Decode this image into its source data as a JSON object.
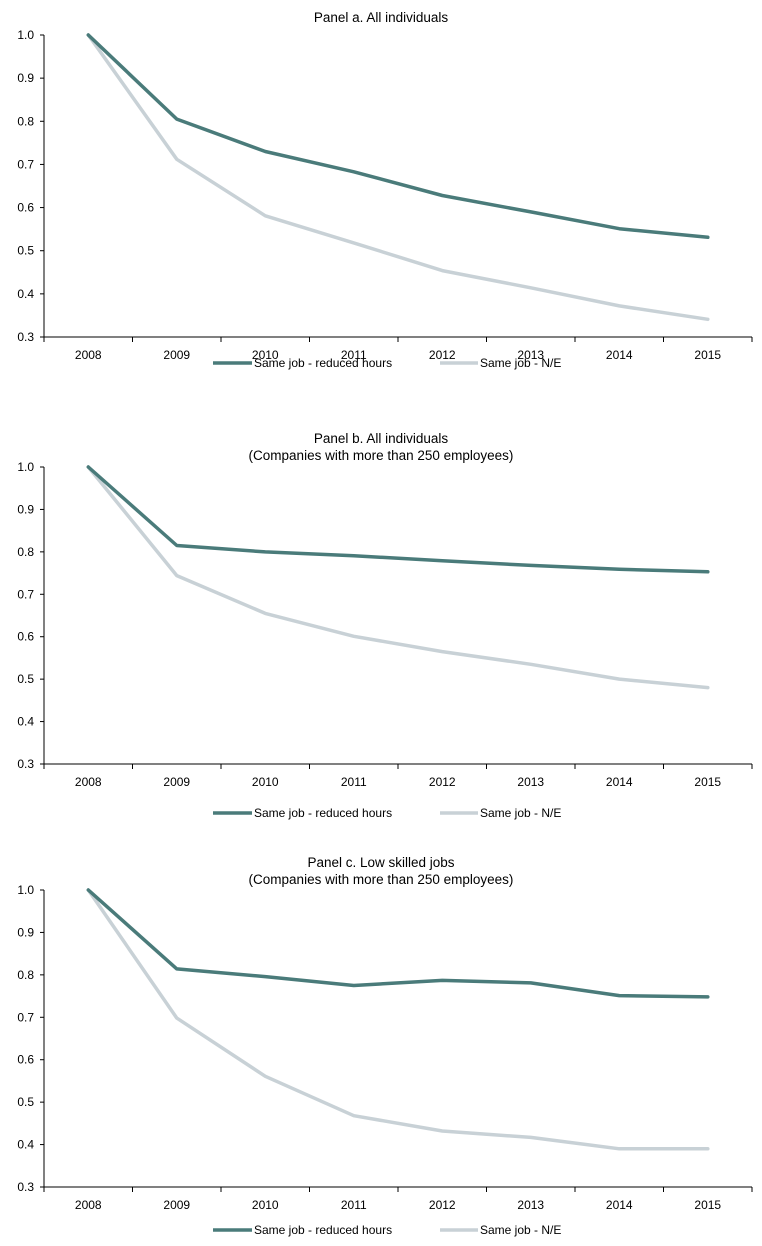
{
  "chart_data": [
    {
      "type": "line",
      "title": "Panel a. All individuals",
      "subtitle": "",
      "xlabel": "",
      "ylabel": "",
      "categories": [
        "2008",
        "2009",
        "2010",
        "2011",
        "2012",
        "2013",
        "2014",
        "2015"
      ],
      "ylim": [
        0.3,
        1.0
      ],
      "yticks": [
        "0.3",
        "0.4",
        "0.5",
        "0.6",
        "0.7",
        "0.8",
        "0.9",
        "1.0"
      ],
      "grid": false,
      "legend_position": "bottom",
      "series": [
        {
          "name": "Same job - reduced hours",
          "color": "#4a7b7a",
          "values": [
            1.0,
            0.805,
            0.73,
            0.683,
            0.628,
            0.59,
            0.551,
            0.531
          ]
        },
        {
          "name": "Same job - N/E",
          "color": "#c8d1d6",
          "values": [
            1.0,
            0.712,
            0.581,
            0.518,
            0.454,
            0.414,
            0.372,
            0.341
          ]
        }
      ]
    },
    {
      "type": "line",
      "title": "Panel b. All individuals",
      "subtitle": "(Companies with more than 250 employees)",
      "xlabel": "",
      "ylabel": "",
      "categories": [
        "2008",
        "2009",
        "2010",
        "2011",
        "2012",
        "2013",
        "2014",
        "2015"
      ],
      "ylim": [
        0.3,
        1.0
      ],
      "yticks": [
        "0.3",
        "0.4",
        "0.5",
        "0.6",
        "0.7",
        "0.8",
        "0.9",
        "1.0"
      ],
      "grid": false,
      "legend_position": "bottom",
      "series": [
        {
          "name": "Same job - reduced hours",
          "color": "#4a7b7a",
          "values": [
            1.0,
            0.815,
            0.8,
            0.791,
            0.779,
            0.768,
            0.759,
            0.753
          ]
        },
        {
          "name": "Same job - N/E",
          "color": "#c8d1d6",
          "values": [
            1.0,
            0.744,
            0.655,
            0.601,
            0.565,
            0.535,
            0.5,
            0.48
          ]
        }
      ]
    },
    {
      "type": "line",
      "title": "Panel c. Low skilled jobs",
      "subtitle": "(Companies with more than 250 employees)",
      "xlabel": "",
      "ylabel": "",
      "categories": [
        "2008",
        "2009",
        "2010",
        "2011",
        "2012",
        "2013",
        "2014",
        "2015"
      ],
      "ylim": [
        0.3,
        1.0
      ],
      "yticks": [
        "0.3",
        "0.4",
        "0.5",
        "0.6",
        "0.7",
        "0.8",
        "0.9",
        "1.0"
      ],
      "grid": false,
      "legend_position": "bottom",
      "series": [
        {
          "name": "Same job - reduced hours",
          "color": "#4a7b7a",
          "values": [
            1.0,
            0.814,
            0.796,
            0.775,
            0.787,
            0.781,
            0.751,
            0.748
          ]
        },
        {
          "name": "Same job - N/E",
          "color": "#c8d1d6",
          "values": [
            1.0,
            0.698,
            0.561,
            0.468,
            0.432,
            0.417,
            0.39,
            0.39
          ]
        }
      ]
    }
  ]
}
